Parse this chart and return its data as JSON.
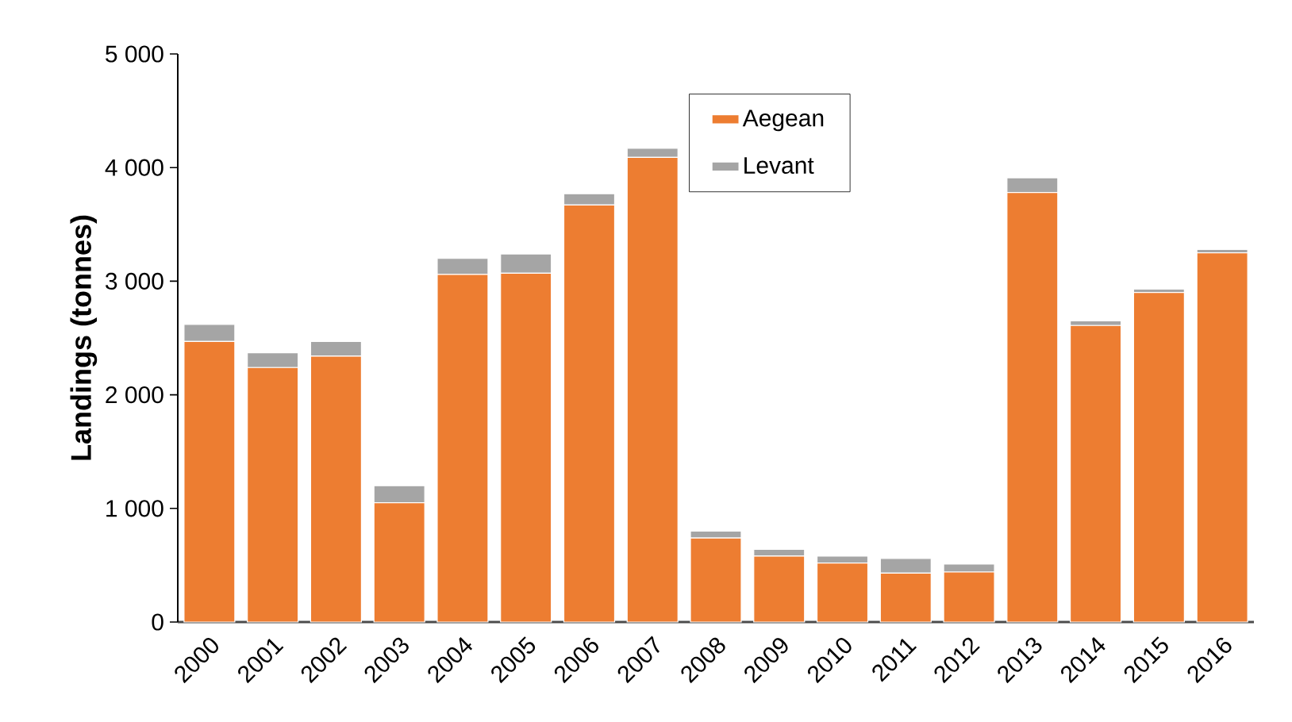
{
  "chart_data": {
    "type": "bar",
    "stacked": true,
    "ylabel": "Landings (tonnes)",
    "categories": [
      "2000",
      "2001",
      "2002",
      "2003",
      "2004",
      "2005",
      "2006",
      "2007",
      "2008",
      "2009",
      "2010",
      "2011",
      "2012",
      "2013",
      "2014",
      "2015",
      "2016"
    ],
    "series": [
      {
        "name": "Aegean",
        "color": "#ed7d31",
        "values": [
          2470,
          2240,
          2340,
          1050,
          3060,
          3070,
          3670,
          4090,
          740,
          580,
          520,
          430,
          440,
          3780,
          2610,
          2900,
          3250
        ]
      },
      {
        "name": "Levant",
        "color": "#a5a5a5",
        "values": [
          150,
          130,
          130,
          150,
          140,
          170,
          100,
          80,
          60,
          60,
          60,
          130,
          70,
          130,
          40,
          30,
          30
        ]
      }
    ],
    "ylim": [
      0,
      5000
    ],
    "yticks": [
      0,
      {
        "value": 1000,
        "label": "1 000"
      },
      {
        "value": 2000,
        "label": "2 000"
      },
      {
        "value": 3000,
        "label": "3 000"
      },
      {
        "value": 4000,
        "label": "4 000"
      },
      {
        "value": 5000,
        "label": "5 000"
      }
    ],
    "legend": "top"
  }
}
